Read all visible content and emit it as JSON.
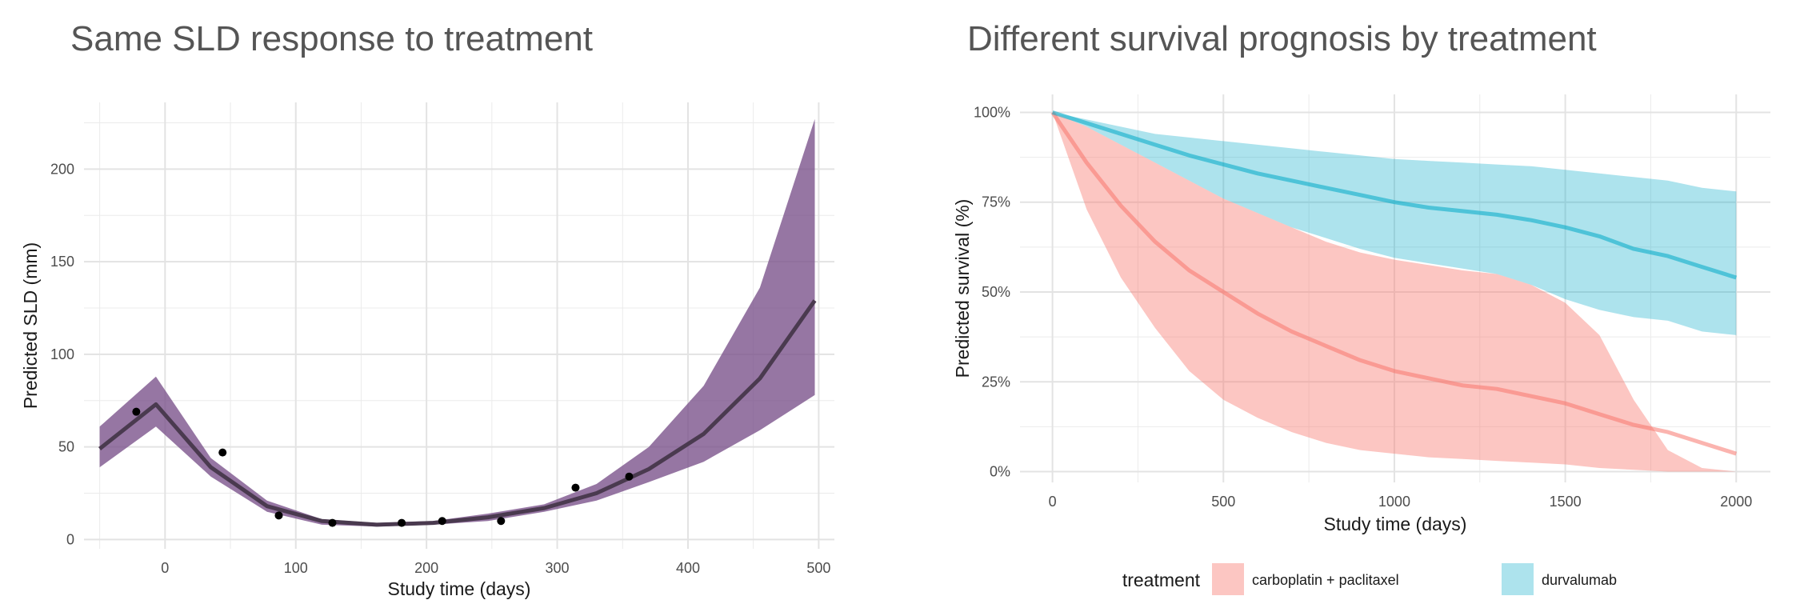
{
  "chart_data": [
    {
      "type": "line",
      "title": "Same SLD response to treatment",
      "xlabel": "Study time (days)",
      "ylabel": "Predicted SLD (mm)",
      "xlim": [
        -62,
        512
      ],
      "ylim": [
        -5,
        236
      ],
      "x_ticks": [
        0,
        100,
        200,
        300,
        400,
        500
      ],
      "y_ticks": [
        0,
        50,
        100,
        150,
        200
      ],
      "grid": true,
      "colors": {
        "band": "#795089",
        "line": "#4a3a4f",
        "points": "#000000",
        "grid": "#ebe8ef"
      },
      "series": [
        {
          "kind": "line-with-ribbon",
          "x": [
            -50,
            -7,
            35,
            78,
            120,
            162,
            205,
            247,
            290,
            330,
            370,
            412,
            455,
            497
          ],
          "y": [
            49,
            73,
            39,
            18,
            10,
            8,
            9,
            12,
            17,
            25,
            38,
            57,
            87,
            129
          ],
          "lower": [
            39,
            61,
            34,
            15,
            8,
            7,
            8,
            10,
            15,
            21,
            31,
            42,
            59,
            78
          ],
          "upper": [
            61,
            88,
            44,
            21,
            11,
            9,
            10,
            14,
            19,
            30,
            50,
            83,
            136,
            227
          ]
        },
        {
          "kind": "points",
          "x": [
            -22,
            44,
            87,
            128,
            181,
            212,
            257,
            314,
            355
          ],
          "y": [
            69,
            47,
            13,
            9,
            9,
            10,
            10,
            28,
            34
          ]
        }
      ]
    },
    {
      "type": "line",
      "title": "Different survival prognosis by treatment",
      "xlabel": "Study time (days)",
      "ylabel": "Predicted survival (%)",
      "xlim": [
        -95,
        2100
      ],
      "ylim": [
        -0.03,
        1.05
      ],
      "x_ticks": [
        0,
        500,
        1000,
        1500,
        2000
      ],
      "y_ticks": [
        0,
        0.25,
        0.5,
        0.75,
        1.0
      ],
      "y_tick_labels": [
        "0%",
        "25%",
        "50%",
        "75%",
        "100%"
      ],
      "grid": true,
      "legend": {
        "title": "treatment",
        "position": "bottom",
        "entries": [
          "carboplatin + paclitaxel",
          "durvalumab"
        ]
      },
      "series": [
        {
          "name": "carboplatin + paclitaxel",
          "color": "#f8766d",
          "x": [
            0,
            100,
            200,
            300,
            400,
            500,
            600,
            700,
            800,
            900,
            1000,
            1100,
            1200,
            1300,
            1400,
            1500,
            1600,
            1700,
            1800,
            1900,
            2000
          ],
          "y": [
            1.0,
            0.86,
            0.74,
            0.64,
            0.56,
            0.5,
            0.44,
            0.39,
            0.35,
            0.31,
            0.28,
            0.26,
            0.24,
            0.23,
            0.21,
            0.19,
            0.16,
            0.13,
            0.11,
            0.08,
            0.05
          ],
          "lower": [
            1.0,
            0.73,
            0.54,
            0.4,
            0.28,
            0.2,
            0.15,
            0.11,
            0.08,
            0.06,
            0.05,
            0.04,
            0.035,
            0.03,
            0.025,
            0.02,
            0.01,
            0.005,
            0.0,
            0.0,
            0.0
          ],
          "upper": [
            1.0,
            0.96,
            0.91,
            0.86,
            0.81,
            0.76,
            0.72,
            0.68,
            0.64,
            0.61,
            0.59,
            0.575,
            0.56,
            0.55,
            0.52,
            0.47,
            0.38,
            0.2,
            0.06,
            0.01,
            0.0
          ]
        },
        {
          "name": "durvalumab",
          "color": "#00a9c6",
          "x": [
            0,
            100,
            200,
            300,
            400,
            500,
            600,
            700,
            800,
            900,
            1000,
            1100,
            1200,
            1300,
            1400,
            1500,
            1600,
            1700,
            1800,
            1900,
            2000
          ],
          "y": [
            1.0,
            0.97,
            0.94,
            0.91,
            0.88,
            0.855,
            0.83,
            0.81,
            0.79,
            0.77,
            0.75,
            0.735,
            0.725,
            0.715,
            0.7,
            0.68,
            0.655,
            0.62,
            0.6,
            0.57,
            0.54
          ],
          "lower": [
            1.0,
            0.96,
            0.91,
            0.86,
            0.81,
            0.76,
            0.72,
            0.68,
            0.65,
            0.62,
            0.595,
            0.58,
            0.565,
            0.55,
            0.52,
            0.48,
            0.45,
            0.43,
            0.42,
            0.39,
            0.38
          ],
          "upper": [
            1.0,
            0.98,
            0.96,
            0.94,
            0.93,
            0.92,
            0.91,
            0.9,
            0.89,
            0.88,
            0.87,
            0.865,
            0.86,
            0.855,
            0.85,
            0.84,
            0.83,
            0.82,
            0.81,
            0.79,
            0.78
          ]
        }
      ]
    }
  ]
}
